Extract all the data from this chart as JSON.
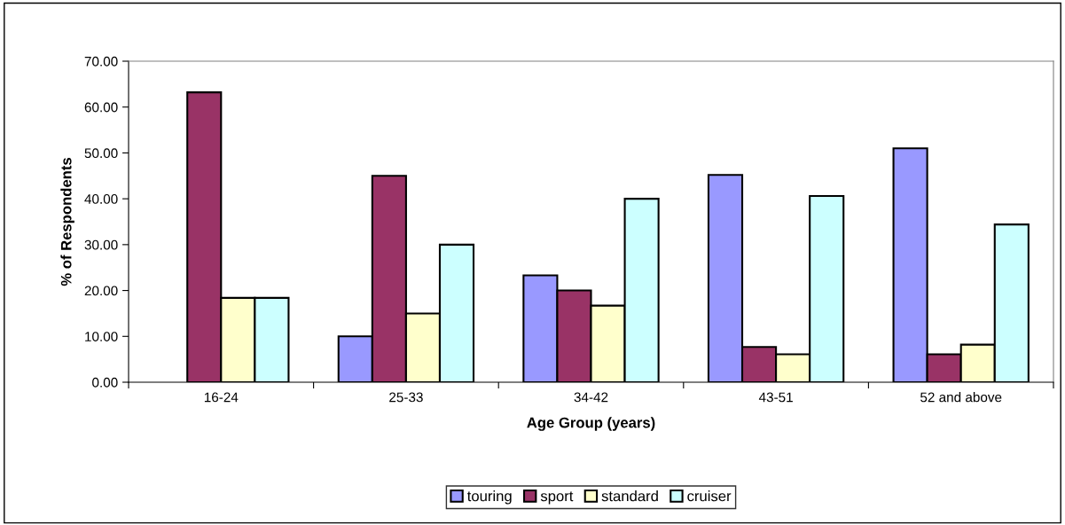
{
  "chart_data": {
    "type": "bar",
    "xlabel": "Age Group (years)",
    "ylabel": "% of Respondents",
    "categories": [
      "16-24",
      "25-33",
      "34-42",
      "43-51",
      "52 and above"
    ],
    "series": [
      {
        "name": "touring",
        "color": "#9999ff",
        "values": [
          null,
          10.0,
          23.3,
          45.2,
          51.0
        ]
      },
      {
        "name": "sport",
        "color": "#993366",
        "values": [
          63.2,
          45.0,
          20.0,
          7.7,
          6.1
        ]
      },
      {
        "name": "standard",
        "color": "#ffffcc",
        "values": [
          18.4,
          15.0,
          16.7,
          6.1,
          8.2
        ]
      },
      {
        "name": "cruiser",
        "color": "#ccffff",
        "values": [
          18.4,
          30.0,
          40.0,
          40.6,
          34.4
        ]
      }
    ],
    "ylim": [
      0,
      70
    ],
    "yticks": [
      {
        "value": 0,
        "label": "0.00"
      },
      {
        "value": 10,
        "label": "10.00"
      },
      {
        "value": 20,
        "label": "20.00"
      },
      {
        "value": 30,
        "label": "30.00"
      },
      {
        "value": 40,
        "label": "40.00"
      },
      {
        "value": 50,
        "label": "50.00"
      },
      {
        "value": 60,
        "label": "60.00"
      },
      {
        "value": 70,
        "label": "70.00"
      }
    ],
    "grid": false,
    "legend": "bottom"
  }
}
